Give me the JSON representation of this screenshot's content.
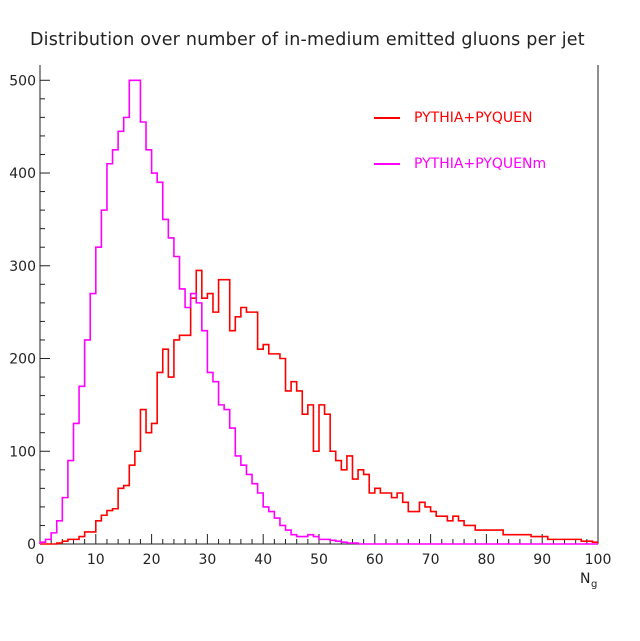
{
  "chart_data": {
    "type": "histogram",
    "title": "Distribution over number of in-medium emitted gluons per jet",
    "xlabel": "N_g",
    "ylabel": "",
    "xlim": [
      0,
      100
    ],
    "ylim": [
      0,
      510
    ],
    "bin_width": 1,
    "x_ticks": [
      0,
      10,
      20,
      30,
      40,
      50,
      60,
      70,
      80,
      90,
      100
    ],
    "y_ticks": [
      0,
      100,
      200,
      300,
      400,
      500
    ],
    "legend_position": "top-right",
    "series": [
      {
        "name": "PYTHIA+PYQUEN",
        "color": "#ff0000",
        "values": [
          0,
          0,
          0,
          1,
          3,
          5,
          5,
          8,
          13,
          13,
          25,
          31,
          36,
          38,
          60,
          63,
          85,
          100,
          145,
          120,
          130,
          185,
          210,
          180,
          220,
          225,
          225,
          265,
          295,
          265,
          270,
          250,
          285,
          285,
          230,
          245,
          255,
          250,
          250,
          210,
          215,
          205,
          205,
          200,
          165,
          175,
          165,
          140,
          150,
          100,
          150,
          140,
          100,
          90,
          80,
          95,
          70,
          80,
          75,
          55,
          60,
          55,
          55,
          50,
          55,
          45,
          35,
          35,
          45,
          40,
          35,
          30,
          30,
          25,
          30,
          25,
          20,
          20,
          15,
          15,
          15,
          15,
          15,
          10,
          10,
          10,
          10,
          10,
          8,
          8,
          8,
          5,
          5,
          5,
          5,
          5,
          5,
          3,
          3,
          2
        ]
      },
      {
        "name": "PYTHIA+PYQUENm",
        "color": "#ff00ff",
        "values": [
          2,
          5,
          12,
          25,
          50,
          90,
          130,
          170,
          220,
          270,
          320,
          360,
          410,
          425,
          445,
          460,
          500,
          500,
          455,
          425,
          400,
          390,
          350,
          330,
          310,
          275,
          255,
          270,
          260,
          230,
          185,
          175,
          150,
          145,
          125,
          95,
          85,
          75,
          65,
          55,
          40,
          35,
          28,
          20,
          15,
          10,
          8,
          8,
          10,
          8,
          5,
          5,
          4,
          3,
          2,
          1,
          1,
          0,
          0,
          0,
          0,
          0,
          0,
          0,
          0,
          0,
          0,
          0,
          0,
          0,
          0,
          0,
          0,
          0,
          0,
          0,
          0,
          0,
          0,
          0,
          0,
          0,
          0,
          0,
          0,
          0,
          0,
          0,
          0,
          0,
          0,
          0,
          0,
          0,
          0,
          0,
          0,
          0,
          0,
          0
        ]
      }
    ]
  }
}
